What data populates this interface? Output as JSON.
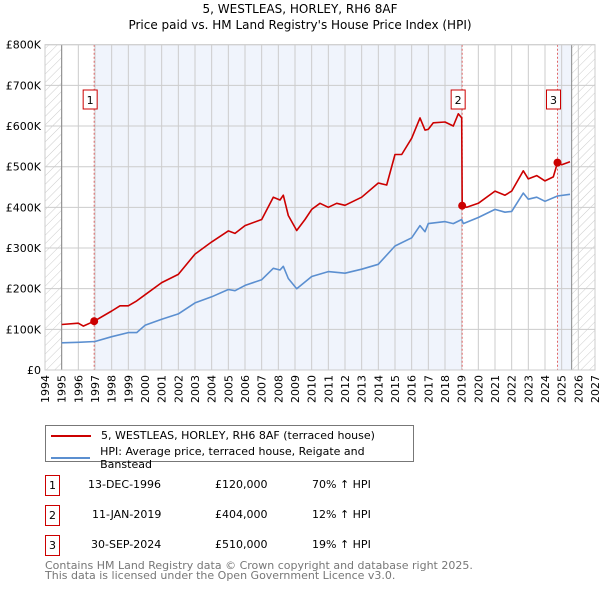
{
  "title_line1": "5, WESTLEAS, HORLEY, RH6 8AF",
  "title_line2": "Price paid vs. HM Land Registry's House Price Index (HPI)",
  "colors": {
    "property": "#cc0000",
    "hpi": "#5b8fd0",
    "shade": "#f0f4fc",
    "grid": "#cccccc"
  },
  "chart_data": {
    "type": "line",
    "title": "Price paid vs. HM Land Registry's House Price Index (HPI)",
    "xlim": [
      1994,
      2027
    ],
    "ylim": [
      0,
      800000
    ],
    "x_ticks": [
      "1994",
      "1995",
      "1996",
      "1997",
      "1998",
      "1999",
      "2000",
      "2001",
      "2002",
      "2003",
      "2004",
      "2005",
      "2006",
      "2007",
      "2008",
      "2009",
      "2010",
      "2011",
      "2012",
      "2013",
      "2014",
      "2015",
      "2016",
      "2017",
      "2018",
      "2019",
      "2020",
      "2021",
      "2022",
      "2023",
      "2024",
      "2025",
      "2026",
      "2027"
    ],
    "y_ticks": [
      {
        "v": 0,
        "label": "£0"
      },
      {
        "v": 100000,
        "label": "£100K"
      },
      {
        "v": 200000,
        "label": "£200K"
      },
      {
        "v": 300000,
        "label": "£300K"
      },
      {
        "v": 400000,
        "label": "£400K"
      },
      {
        "v": 500000,
        "label": "£500K"
      },
      {
        "v": 600000,
        "label": "£600K"
      },
      {
        "v": 700000,
        "label": "£700K"
      },
      {
        "v": 800000,
        "label": "£800K"
      }
    ],
    "grid": true,
    "data_range": [
      1995,
      2025.6
    ],
    "series": [
      {
        "name": "5, WESTLEAS, HORLEY, RH6 8AF (terraced house)",
        "color": "#cc0000",
        "x": [
          1995,
          1996,
          1996.3,
          1996.95,
          1998,
          1998.5,
          1999,
          1999.5,
          2000,
          2001,
          2002,
          2003,
          2004,
          2005,
          2005.4,
          2006,
          2007,
          2007.7,
          2008.1,
          2008.3,
          2008.6,
          2009.1,
          2009.6,
          2010,
          2010.5,
          2011,
          2011.5,
          2012,
          2013,
          2014,
          2014.5,
          2015,
          2015.4,
          2016,
          2016.5,
          2016.8,
          2017,
          2017.3,
          2018,
          2018.5,
          2018.8,
          2019.0,
          2019.03,
          2019.3,
          2020,
          2021,
          2021.6,
          2022,
          2022.7,
          2023,
          2023.5,
          2024,
          2024.5,
          2024.75,
          2025,
          2025.5
        ],
        "y": [
          112000,
          115000,
          108000,
          120000,
          145000,
          158000,
          158000,
          170000,
          185000,
          215000,
          235000,
          285000,
          315000,
          342000,
          336000,
          355000,
          370000,
          425000,
          418000,
          430000,
          380000,
          343000,
          370000,
          395000,
          410000,
          400000,
          410000,
          405000,
          425000,
          460000,
          455000,
          530000,
          530000,
          570000,
          620000,
          590000,
          592000,
          608000,
          610000,
          600000,
          630000,
          620000,
          404000,
          400000,
          410000,
          440000,
          430000,
          440000,
          490000,
          470000,
          478000,
          465000,
          475000,
          510000,
          505000,
          512000
        ]
      },
      {
        "name": "HPI: Average price, terraced house, Reigate and Banstead",
        "color": "#5b8fd0",
        "x": [
          1995,
          1996,
          1997,
          1998,
          1999,
          1999.5,
          2000,
          2001,
          2002,
          2003,
          2004,
          2005,
          2005.4,
          2006,
          2007,
          2007.7,
          2008.1,
          2008.3,
          2008.6,
          2009.1,
          2010,
          2011,
          2012,
          2013,
          2014,
          2015,
          2016,
          2016.5,
          2016.8,
          2017,
          2018,
          2018.5,
          2019,
          2019.1,
          2020,
          2021,
          2021.6,
          2022,
          2022.7,
          2023,
          2023.5,
          2024,
          2024.75,
          2025.5
        ],
        "y": [
          67000,
          68000,
          70000,
          82000,
          92000,
          92000,
          110000,
          125000,
          138000,
          165000,
          180000,
          198000,
          195000,
          208000,
          222000,
          250000,
          246000,
          255000,
          225000,
          200000,
          230000,
          242000,
          238000,
          248000,
          260000,
          305000,
          325000,
          355000,
          340000,
          360000,
          365000,
          360000,
          370000,
          360000,
          375000,
          395000,
          388000,
          390000,
          435000,
          420000,
          425000,
          415000,
          428000,
          432000
        ]
      }
    ],
    "sales": [
      {
        "n": "1",
        "date": "13-DEC-1996",
        "x": 1996.95,
        "price": "£120,000",
        "value": 120000,
        "hpi": "70% ↑ HPI"
      },
      {
        "n": "2",
        "date": "11-JAN-2019",
        "x": 2019.03,
        "price": "£404,000",
        "value": 404000,
        "hpi": "12% ↑ HPI"
      },
      {
        "n": "3",
        "date": "30-SEP-2024",
        "x": 2024.75,
        "price": "£510,000",
        "value": 510000,
        "hpi": "19% ↑ HPI"
      }
    ]
  },
  "legend": {
    "property": "5, WESTLEAS, HORLEY, RH6 8AF (terraced house)",
    "hpi": "HPI: Average price, terraced house, Reigate and Banstead"
  },
  "footer": {
    "line1": "Contains HM Land Registry data © Crown copyright and database right 2025.",
    "line2": "This data is licensed under the Open Government Licence v3.0."
  }
}
